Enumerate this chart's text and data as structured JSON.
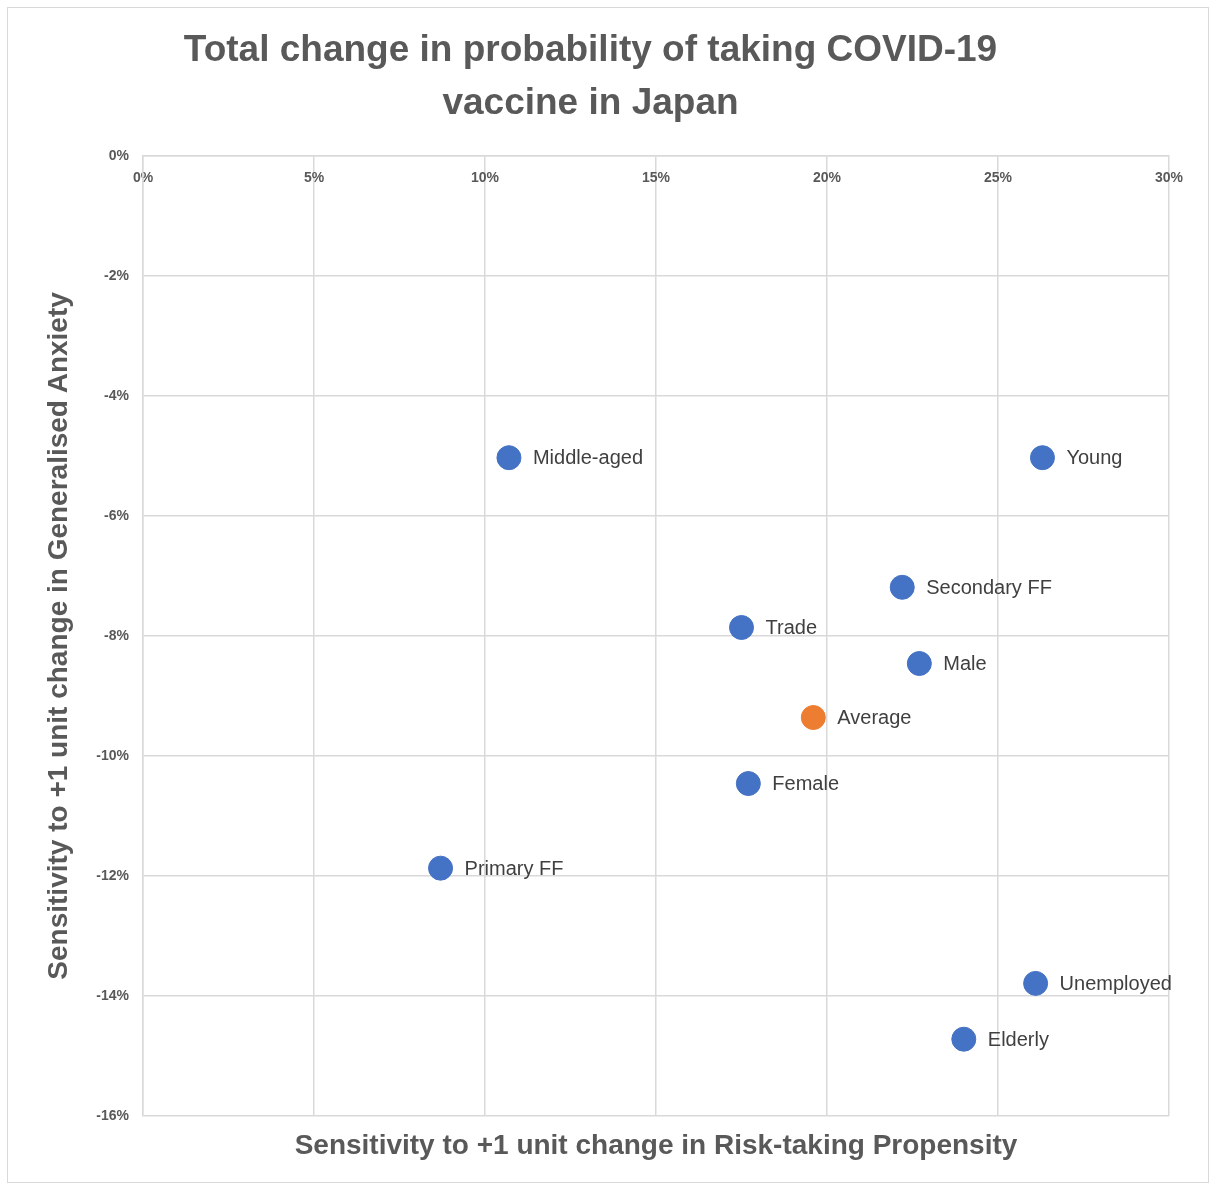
{
  "chart_data": {
    "type": "scatter",
    "title": "Total change in probability of taking COVID-19 vaccine in Japan",
    "xlabel": "Sensitivity to +1 unit change in Risk-taking Propensity",
    "ylabel": "Sensitivity to +1 unit change in Generalised Anxiety",
    "xlim": [
      0,
      30
    ],
    "xticks": [
      {
        "value": 0,
        "label": "0%"
      },
      {
        "value": 5,
        "label": "5%"
      },
      {
        "value": 10,
        "label": "10%"
      },
      {
        "value": 15,
        "label": "15%"
      },
      {
        "value": 20,
        "label": "20%"
      },
      {
        "value": 25,
        "label": "25%"
      },
      {
        "value": 30,
        "label": "30%"
      }
    ],
    "ylim": [
      -16,
      0
    ],
    "yticks": [
      {
        "value": 0,
        "label": "0%"
      },
      {
        "value": -2,
        "label": "-2%"
      },
      {
        "value": -4,
        "label": "-4%"
      },
      {
        "value": -6,
        "label": "-6%"
      },
      {
        "value": -8,
        "label": "-8%"
      },
      {
        "value": -10,
        "label": "-10%"
      },
      {
        "value": -12,
        "label": "-12%"
      },
      {
        "value": -14,
        "label": "-14%"
      },
      {
        "value": -16,
        "label": "-16%"
      }
    ],
    "grid": true,
    "marker": "circle",
    "series": [
      {
        "name": "Middle-aged",
        "color": "#4472c4",
        "x": [
          10.7
        ],
        "values": [
          -5.03
        ]
      },
      {
        "name": "Young",
        "color": "#4472c4",
        "x": [
          26.3
        ],
        "values": [
          -5.03
        ]
      },
      {
        "name": "Secondary FF",
        "color": "#4472c4",
        "x": [
          22.2
        ],
        "values": [
          -7.19
        ]
      },
      {
        "name": "Trade",
        "color": "#4472c4",
        "x": [
          17.5
        ],
        "values": [
          -7.86
        ]
      },
      {
        "name": "Male",
        "color": "#4472c4",
        "x": [
          22.7
        ],
        "values": [
          -8.46
        ]
      },
      {
        "name": "Average",
        "color": "#ed7d31",
        "x": [
          19.6
        ],
        "values": [
          -9.36
        ]
      },
      {
        "name": "Female",
        "color": "#4472c4",
        "x": [
          17.7
        ],
        "values": [
          -10.46
        ]
      },
      {
        "name": "Primary FF",
        "color": "#4472c4",
        "x": [
          8.7
        ],
        "values": [
          -11.87
        ]
      },
      {
        "name": "Unemployed",
        "color": "#4472c4",
        "x": [
          26.1
        ],
        "values": [
          -13.79
        ]
      },
      {
        "name": "Elderly",
        "color": "#4472c4",
        "x": [
          24.0
        ],
        "values": [
          -14.72
        ]
      }
    ]
  }
}
